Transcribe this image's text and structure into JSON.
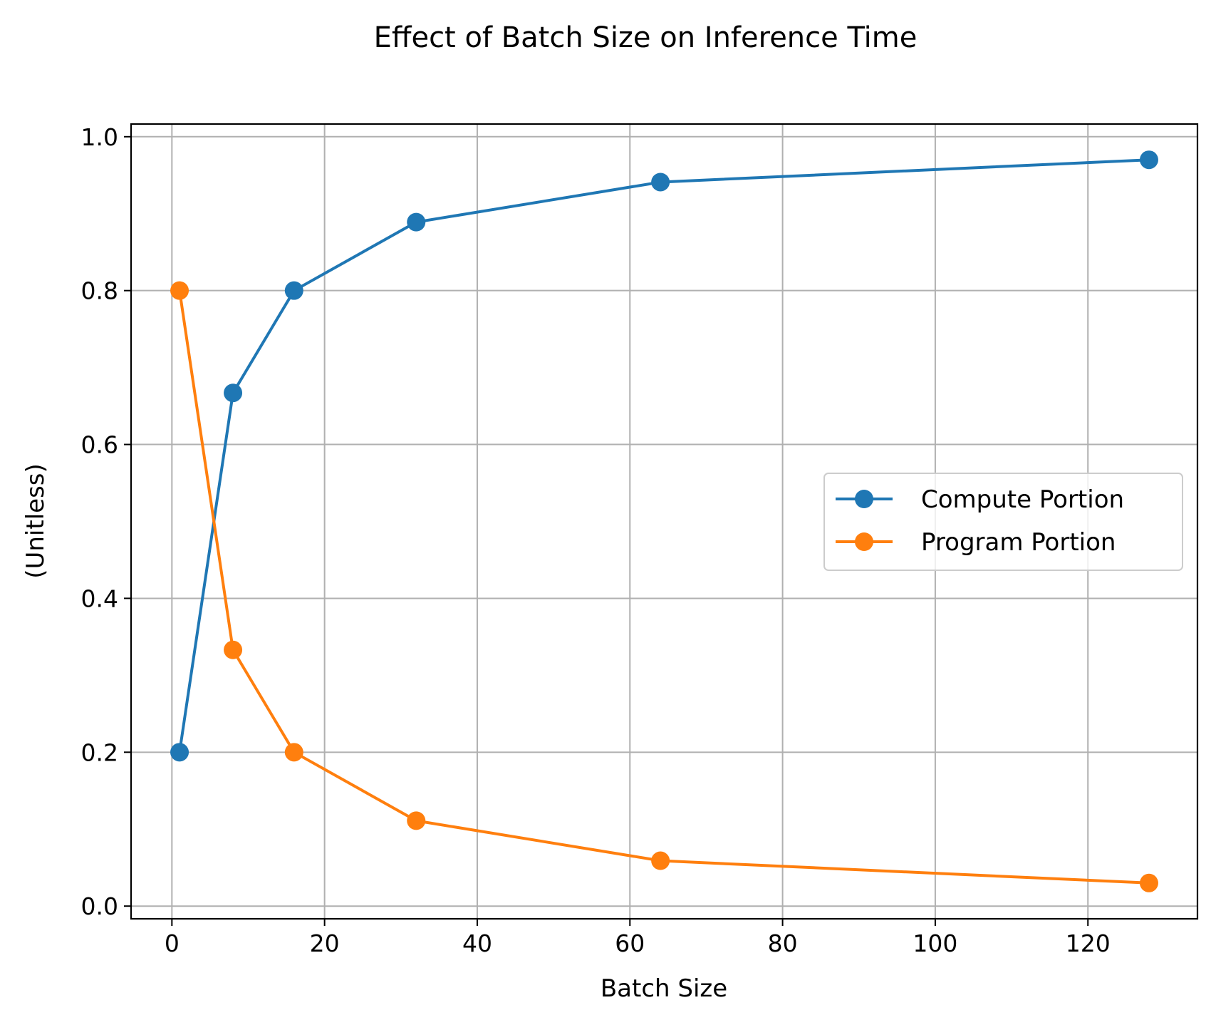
{
  "chart_data": {
    "type": "line",
    "title": "Effect of Batch Size on Inference Time",
    "xlabel": "Batch Size",
    "ylabel": "(Unitless)",
    "xlim": [
      -5.35,
      134.35
    ],
    "ylim": [
      -0.0165,
      1.0165
    ],
    "xticks": [
      0,
      20,
      40,
      60,
      80,
      100,
      120
    ],
    "yticks": [
      0.0,
      0.2,
      0.4,
      0.6,
      0.8,
      1.0
    ],
    "xtick_labels": [
      "0",
      "20",
      "40",
      "60",
      "80",
      "100",
      "120"
    ],
    "ytick_labels": [
      "0.0",
      "0.2",
      "0.4",
      "0.6",
      "0.8",
      "1.0"
    ],
    "grid": true,
    "legend_position": "center-right",
    "x": [
      1,
      8,
      16,
      32,
      64,
      128
    ],
    "series": [
      {
        "name": "Compute Portion",
        "color": "#1f77b4",
        "marker": "circle",
        "values": [
          0.2,
          0.667,
          0.8,
          0.889,
          0.941,
          0.97
        ]
      },
      {
        "name": "Program Portion",
        "color": "#ff7f0e",
        "marker": "circle",
        "values": [
          0.8,
          0.333,
          0.2,
          0.111,
          0.059,
          0.03
        ]
      }
    ]
  }
}
